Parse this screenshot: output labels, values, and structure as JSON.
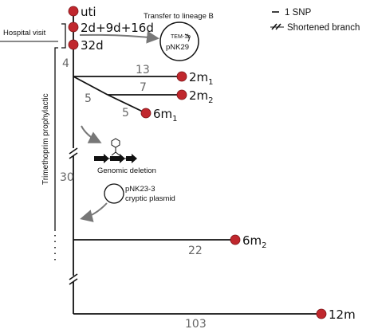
{
  "nodes": {
    "uti": "uti",
    "visits": "2d+9d+16d",
    "d32": "32d",
    "m2_1": "2m",
    "m2_1_sub": "1",
    "m2_2": "2m",
    "m2_2_sub": "2",
    "m6_1": "6m",
    "m6_1_sub": "1",
    "m6_2": "6m",
    "m6_2_sub": "2",
    "m12": "12m"
  },
  "branch_lengths": {
    "trunk_top": "4",
    "to_2m1": "13",
    "to_2m2": "7",
    "sub_split": "5",
    "to_6m1": "5",
    "trunk_mid": "30",
    "to_6m2": "22",
    "to_12m": "103"
  },
  "annotations": {
    "hospital_visit": "Hospital visit",
    "transfer": "Transfer to lineage B",
    "tem": "TEM-1b",
    "pnk29": "pNK29",
    "genomic_deletion": "Genomic deletion",
    "cryptic_line1": "pNK23-3",
    "cryptic_line2": "cryptic plasmid",
    "trimethoprim": "Trimethoprim prophylactic"
  },
  "legend": {
    "snp": "1 SNP",
    "shortened": "Shortened branch"
  },
  "colors": {
    "node_fill": "#c0272d",
    "line": "#111111",
    "arrow": "#777777"
  }
}
